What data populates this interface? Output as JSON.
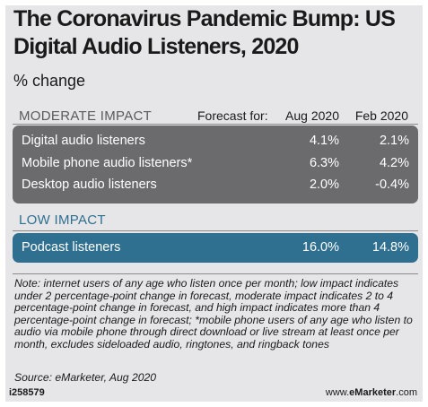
{
  "title": "The Coronavirus Pandemic Bump: US Digital Audio Listeners, 2020",
  "subtitle": "% change",
  "header": {
    "forecast_for": "Forecast for:",
    "columns": [
      "Aug 2020",
      "Feb 2020"
    ]
  },
  "chart_data": {
    "type": "table",
    "columns": [
      "Aug 2020",
      "Feb 2020"
    ],
    "groups": [
      {
        "name": "MODERATE IMPACT",
        "rows": [
          {
            "label": "Digital audio listeners",
            "values": [
              "4.1%",
              "2.1%"
            ]
          },
          {
            "label": "Mobile phone audio listeners*",
            "values": [
              "6.3%",
              "4.2%"
            ]
          },
          {
            "label": "Desktop audio listeners",
            "values": [
              "2.0%",
              "-0.4%"
            ]
          }
        ]
      },
      {
        "name": "LOW IMPACT",
        "rows": [
          {
            "label": "Podcast listeners",
            "values": [
              "16.0%",
              "14.8%"
            ]
          }
        ]
      }
    ]
  },
  "note": "Note: internet users of any age who listen once per month; low impact indicates under 2 percentage-point change in forecast, moderate impact indicates 2 to 4 percentage-point change in forecast, and high impact indicates more than 4 percentage-point change in forecast; *mobile phone users of any age who listen to audio via mobile phone through direct download or live stream at least once per month, excludes sideloaded audio, ringtones, and ringback tones",
  "source": "Source: eMarketer, Aug 2020",
  "footer": {
    "id": "i258579",
    "brand_prefix": "www.",
    "brand_name": "eMarketer",
    "brand_suffix": ".com"
  },
  "colors": {
    "moderate_box": "#6b6b6d",
    "low_box": "#2f6f8f",
    "panel": "#e6e6e8"
  }
}
